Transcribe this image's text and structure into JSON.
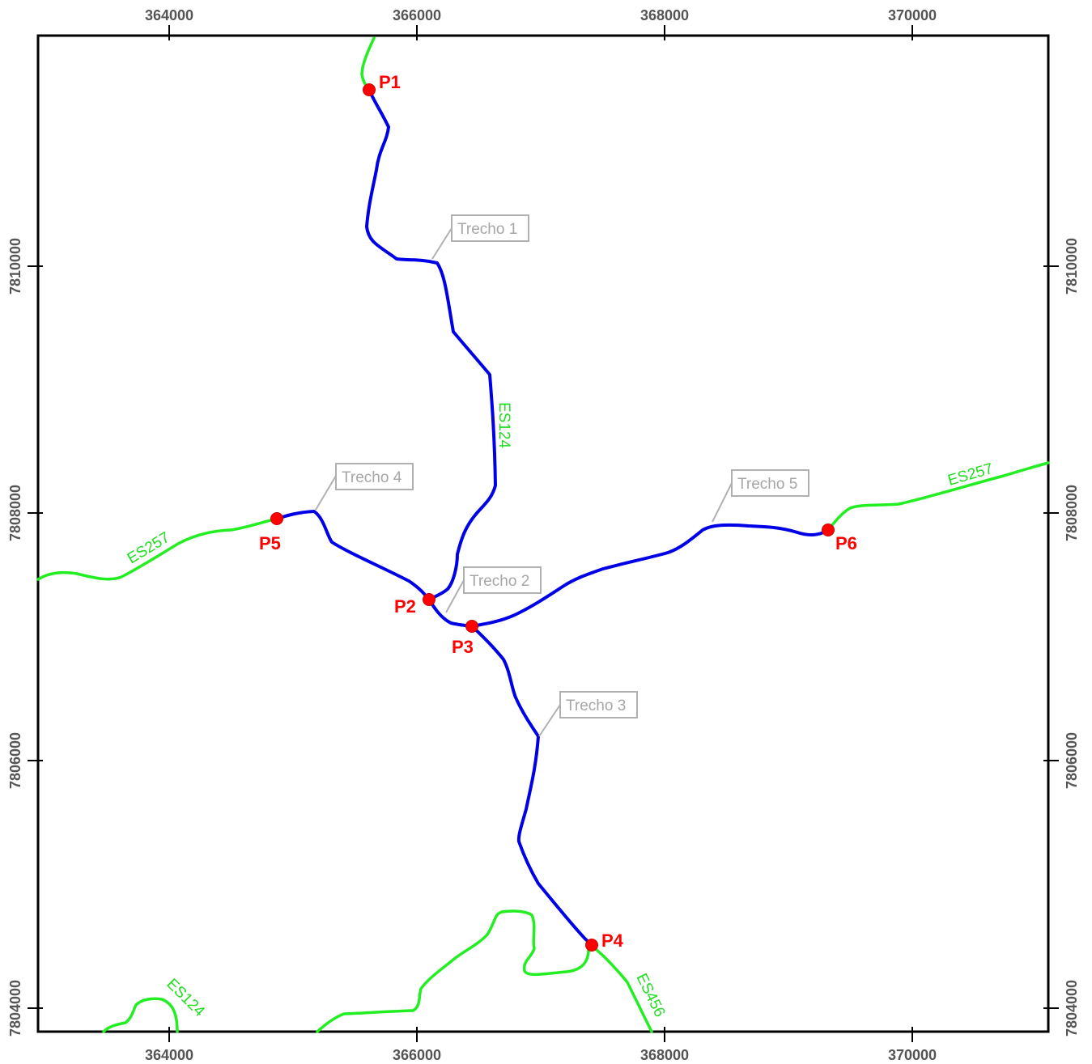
{
  "map": {
    "x_ticks": [
      "364000",
      "366000",
      "368000",
      "370000"
    ],
    "y_ticks": [
      "7810000",
      "7808000",
      "7806000",
      "7804000"
    ],
    "points": [
      {
        "id": "p1",
        "label": "P1"
      },
      {
        "id": "p2",
        "label": "P2"
      },
      {
        "id": "p3",
        "label": "P3"
      },
      {
        "id": "p4",
        "label": "P4"
      },
      {
        "id": "p5",
        "label": "P5"
      },
      {
        "id": "p6",
        "label": "P6"
      }
    ],
    "segments": [
      {
        "id": "trecho-1",
        "label": "Trecho 1"
      },
      {
        "id": "trecho-2",
        "label": "Trecho 2"
      },
      {
        "id": "trecho-3",
        "label": "Trecho 3"
      },
      {
        "id": "trecho-4",
        "label": "Trecho 4"
      },
      {
        "id": "trecho-5",
        "label": "Trecho 5"
      }
    ],
    "roads": [
      {
        "id": "es124-north",
        "label": "ES124"
      },
      {
        "id": "es257-west",
        "label": "ES257"
      },
      {
        "id": "es257-east",
        "label": "ES257"
      },
      {
        "id": "es124-south",
        "label": "ES124"
      },
      {
        "id": "es456",
        "label": "ES456"
      }
    ],
    "colors": {
      "route": "#0000ff",
      "road": "#22ee22",
      "point": "#ff0000",
      "callout": "#a6a6a6",
      "frame": "#000000"
    }
  }
}
